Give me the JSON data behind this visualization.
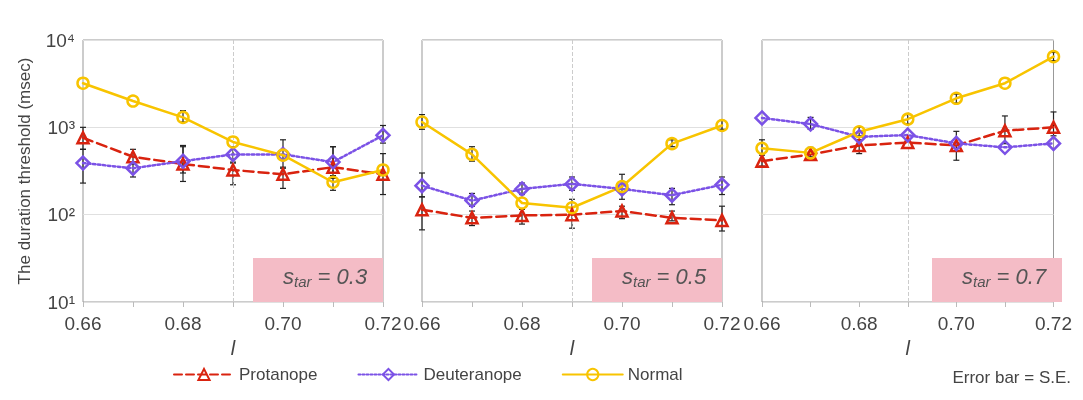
{
  "chart_data": [
    {
      "type": "line",
      "ylabel": "The duration threshold (msec)",
      "xlabel": "l",
      "log": "y",
      "grid": "y",
      "tick_labels": true,
      "legend": "bottom",
      "x": [
        0.66,
        0.67,
        0.68,
        0.69,
        0.7,
        0.71,
        0.72
      ],
      "xlim": [
        0.66,
        0.72
      ],
      "xticks": [
        0.66,
        {
          "value": 0.67,
          "label": null
        },
        0.68,
        {
          "value": 0.69,
          "label": null
        },
        {
          "value": 0.7,
          "label": "0.70"
        },
        {
          "value": 0.71,
          "label": null
        },
        0.72
      ],
      "ylim": [
        10,
        10000
      ],
      "yticks": [
        {
          "value": 10,
          "label": "10¹"
        },
        {
          "value": 100,
          "label": "10²"
        },
        {
          "value": 1000,
          "label": "10³"
        },
        {
          "value": 10000,
          "label": "10⁴"
        }
      ],
      "ref_lines": [
        {
          "axis": "x",
          "value": 0.69,
          "color": "#cccccc",
          "line_style": "dashed"
        }
      ],
      "annotations": [
        "s$_{tar}$ = 0.3"
      ],
      "series": [
        {
          "name": "Protanope",
          "color": "#d9230f",
          "marker": "triangle",
          "line_style": "dashed",
          "values": [
            760,
            460,
            380,
            325,
            290,
            350,
            290
          ],
          "errors": [
            [
              560,
              1000
            ],
            [
              380,
              560
            ],
            [
              300,
              620
            ],
            [
              220,
              390
            ],
            [
              200,
              350
            ],
            [
              260,
              600
            ],
            [
              170,
              500
            ]
          ]
        },
        {
          "name": "Deuteranope",
          "color": "#7b52e6",
          "marker": "diamond",
          "line_style": "dotted",
          "values": [
            390,
            340,
            410,
            490,
            490,
            400,
            810
          ],
          "errors": [
            [
              230,
              560
            ],
            [
              270,
              400
            ],
            [
              240,
              600
            ],
            [
              400,
              600
            ],
            [
              340,
              720
            ],
            [
              300,
              600
            ],
            [
              660,
              1050
            ]
          ]
        },
        {
          "name": "Normal",
          "color": "#f8c400",
          "marker": "circle",
          "line_style": "solid",
          "values": [
            3200,
            2000,
            1300,
            680,
            480,
            235,
            325
          ],
          "errors": [
            null,
            null,
            [
              1150,
              1550
            ],
            null,
            null,
            [
              190,
              280
            ],
            null
          ]
        }
      ]
    },
    {
      "type": "line",
      "xlabel": "l",
      "log": "y",
      "grid": "y",
      "tick_labels": "x",
      "x": [
        0.66,
        0.67,
        0.68,
        0.69,
        0.7,
        0.71,
        0.72
      ],
      "xlim": [
        0.66,
        0.72
      ],
      "xticks": [
        0.66,
        {
          "value": 0.67,
          "label": null
        },
        0.68,
        {
          "value": 0.69,
          "label": null
        },
        {
          "value": 0.7,
          "label": "0.70"
        },
        {
          "value": 0.71,
          "label": null
        },
        0.72
      ],
      "ylim": [
        10,
        10000
      ],
      "yticks": [
        10,
        100,
        1000,
        10000
      ],
      "ref_lines": [
        {
          "axis": "x",
          "value": 0.69,
          "color": "#cccccc",
          "line_style": "dashed"
        }
      ],
      "annotations": [
        "s$_{tar}$ = 0.5"
      ],
      "series": [
        {
          "name": "Protanope",
          "color": "#d9230f",
          "marker": "triangle",
          "line_style": "dashed",
          "values": [
            114,
            92,
            98,
            100,
            110,
            92,
            86
          ],
          "errors": [
            [
              67,
              160
            ],
            [
              75,
              110
            ],
            [
              78,
              115
            ],
            [
              70,
              150
            ],
            [
              90,
              125
            ],
            [
              85,
              110
            ],
            [
              65,
              125
            ]
          ]
        },
        {
          "name": "Deuteranope",
          "color": "#7b52e6",
          "marker": "diamond",
          "line_style": "dotted",
          "values": [
            215,
            145,
            197,
            225,
            197,
            167,
            220
          ],
          "errors": [
            [
              160,
              300
            ],
            [
              125,
              175
            ],
            [
              170,
              230
            ],
            [
              190,
              270
            ],
            [
              150,
              290
            ],
            [
              130,
              200
            ],
            [
              170,
              270
            ]
          ]
        },
        {
          "name": "Normal",
          "color": "#f8c400",
          "marker": "circle",
          "line_style": "solid",
          "values": [
            1150,
            490,
            136,
            120,
            210,
            650,
            1050
          ],
          "errors": [
            [
              950,
              1400
            ],
            [
              410,
              600
            ],
            null,
            null,
            null,
            [
              600,
              720
            ],
            [
              950,
              1200
            ]
          ]
        }
      ]
    },
    {
      "type": "line",
      "xlabel": "l",
      "log": "y",
      "grid": "y",
      "tick_labels": "x",
      "x": [
        0.66,
        0.67,
        0.68,
        0.69,
        0.7,
        0.71,
        0.72
      ],
      "xlim": [
        0.66,
        0.72
      ],
      "xticks": [
        0.66,
        {
          "value": 0.67,
          "label": null
        },
        0.68,
        {
          "value": 0.69,
          "label": null
        },
        {
          "value": 0.7,
          "label": "0.70"
        },
        {
          "value": 0.71,
          "label": null
        },
        0.72
      ],
      "ylim": [
        10,
        10000
      ],
      "yticks": [
        10,
        100,
        1000,
        10000
      ],
      "ref_lines": [
        {
          "axis": "x",
          "value": 0.69,
          "color": "#cccccc",
          "line_style": "dashed"
        }
      ],
      "annotations": [
        "s$_{tar}$ = 0.7",
        "Error bar = S.E."
      ],
      "series": [
        {
          "name": "Protanope",
          "color": "#d9230f",
          "marker": "triangle",
          "line_style": "dashed",
          "values": [
            410,
            490,
            620,
            670,
            620,
            915,
            1000
          ],
          "errors": [
            [
              360,
              480
            ],
            null,
            [
              500,
              720
            ],
            null,
            [
              420,
              900
            ],
            [
              650,
              1350
            ],
            [
              800,
              1500
            ]
          ]
        },
        {
          "name": "Deuteranope",
          "color": "#7b52e6",
          "marker": "diamond",
          "line_style": "dotted",
          "values": [
            1280,
            1090,
            780,
            815,
            655,
            590,
            655
          ],
          "errors": [
            null,
            [
              950,
              1300
            ],
            null,
            null,
            null,
            null,
            null
          ]
        },
        {
          "name": "Normal",
          "color": "#f8c400",
          "marker": "circle",
          "line_style": "solid",
          "values": [
            575,
            510,
            890,
            1240,
            2150,
            3200,
            6450
          ],
          "errors": [
            [
              500,
              720
            ],
            [
              460,
              590
            ],
            [
              800,
              1000
            ],
            [
              1100,
              1400
            ],
            [
              1900,
              2400
            ],
            null,
            [
              5800,
              7200
            ]
          ]
        }
      ]
    }
  ]
}
